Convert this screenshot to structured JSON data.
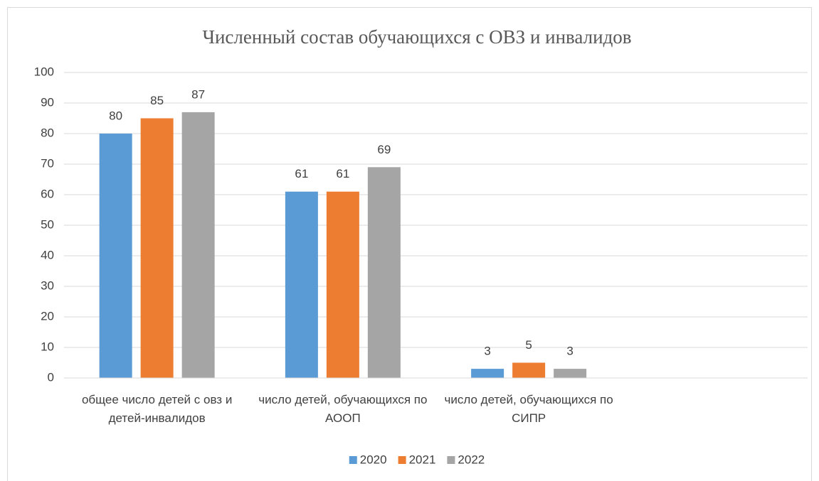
{
  "chart_data": {
    "type": "bar",
    "title": "Численный состав обучающихся с ОВЗ и инвалидов",
    "categories": [
      "общее число детей с овз и детей-инвалидов",
      "число детей, обучающихся по АООП",
      "число детей, обучающихся по СИПР",
      null
    ],
    "series": [
      {
        "name": "2020",
        "color": "#5b9bd5",
        "values": [
          80,
          61,
          3,
          null
        ]
      },
      {
        "name": "2021",
        "color": "#ed7d31",
        "values": [
          85,
          61,
          5,
          null
        ]
      },
      {
        "name": "2022",
        "color": "#a5a5a5",
        "values": [
          87,
          69,
          3,
          null
        ]
      }
    ],
    "ylim": [
      0,
      100
    ],
    "yticks": [
      0,
      10,
      20,
      30,
      40,
      50,
      60,
      70,
      80,
      90,
      100
    ],
    "grid": true,
    "legend": "bottom"
  }
}
